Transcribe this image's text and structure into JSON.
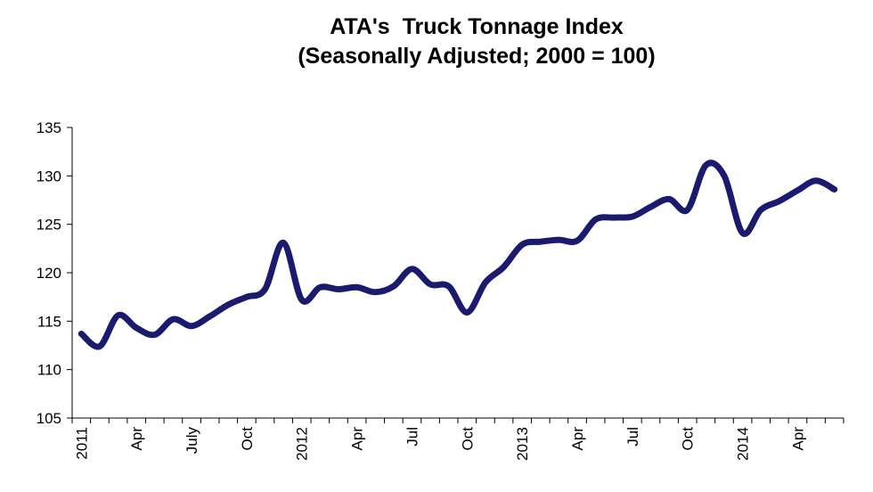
{
  "chart_data": {
    "type": "line",
    "title_line1": "ATA's  Truck Tonnage Index",
    "title_line2": "(Seasonally Adjusted; 2000 = 100)",
    "xlabel": "",
    "ylabel": "",
    "ylim": [
      105,
      135
    ],
    "yticks": [
      "135",
      "130",
      "125",
      "120",
      "115",
      "110",
      "105"
    ],
    "x_tick_labels": [
      "2011",
      "Apr",
      "July",
      "Oct",
      "2012",
      "Apr",
      "Jul",
      "Oct",
      "2013",
      "Apr",
      "Jul",
      "Oct",
      "2014",
      "Apr"
    ],
    "grid": false,
    "legend": "none",
    "line_color": "#1a1a6e",
    "series": [
      {
        "values": [
          113.7,
          112.4,
          115.6,
          114.3,
          113.6,
          115.2,
          114.5,
          115.5,
          116.7,
          117.5,
          118.3,
          123.1,
          117.2,
          118.5,
          118.3,
          118.5,
          118.0,
          118.6,
          120.4,
          118.8,
          118.6,
          115.9,
          119.0,
          120.6,
          122.9,
          123.2,
          123.4,
          123.3,
          125.5,
          125.7,
          125.8,
          126.8,
          127.6,
          126.5,
          131.1,
          130.0,
          124.1,
          126.5,
          127.4,
          128.5,
          129.5,
          128.6
        ]
      }
    ]
  }
}
